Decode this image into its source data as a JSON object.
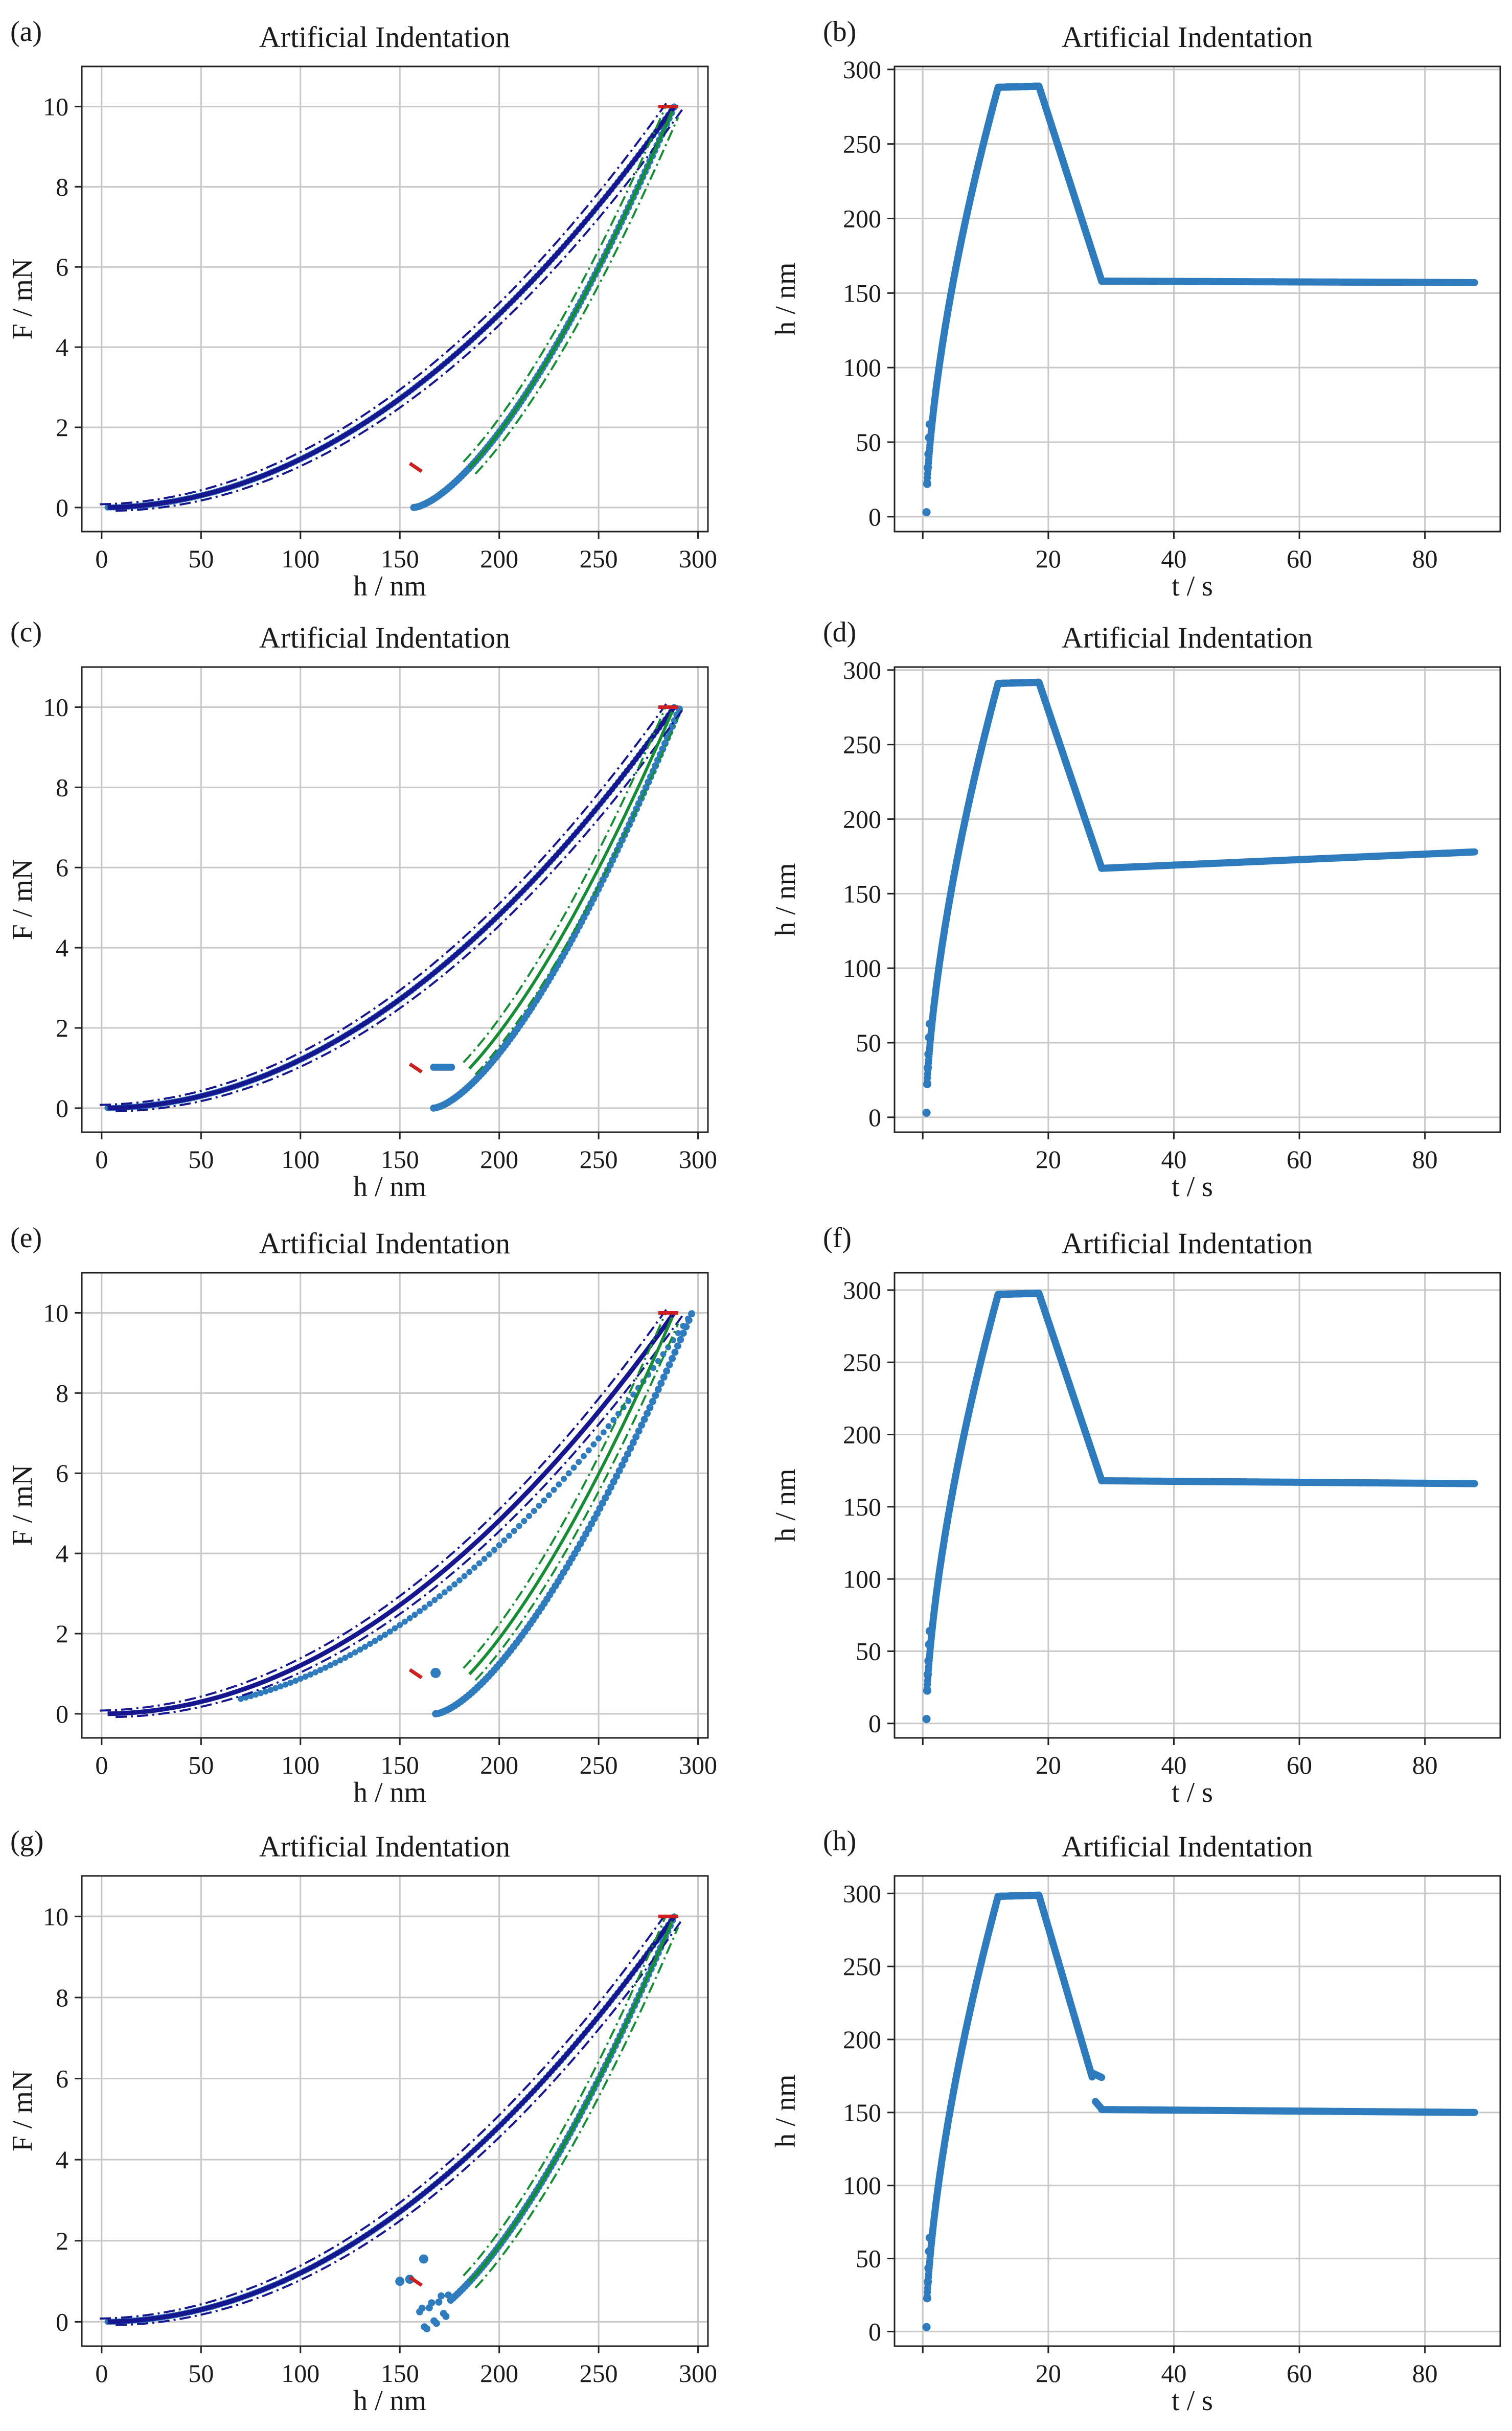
{
  "figure": {
    "kind": "2x4 grid of indentation plots"
  },
  "colors": {
    "measured": "#2e7bbd",
    "loading_fit": "#16168f",
    "unloading_fit": "#168c34",
    "max_point": "#cc2020",
    "grid": "#c8c8c8",
    "axis": "#222222"
  },
  "chart_data": [
    {
      "id": "a",
      "letter": "(a)",
      "type": "scatter",
      "title": "Artificial Indentation",
      "xlabel": "h / nm",
      "ylabel": "F / mN",
      "xlim": [
        -10,
        305
      ],
      "ylim": [
        -0.6,
        11
      ],
      "xticks": [
        0,
        50,
        100,
        150,
        200,
        250,
        300
      ],
      "yticks": [
        0,
        2,
        4,
        6,
        8,
        10
      ],
      "variant": "ideal",
      "hmax": 288,
      "hf": 157,
      "fmax": 10
    },
    {
      "id": "b",
      "letter": "(b)",
      "type": "scatter",
      "title": "Artificial Indentation",
      "xlabel": "t / s",
      "ylabel": "h / nm",
      "xlim": [
        -4.5,
        92
      ],
      "ylim": [
        -10,
        302
      ],
      "xticks": [
        0,
        20,
        40,
        60,
        80
      ],
      "xtick_labels": [
        "",
        "20",
        "40",
        "60",
        "80"
      ],
      "yticks": [
        0,
        50,
        100,
        150,
        200,
        250,
        300
      ],
      "hmax": 288,
      "h_end_unload": 158,
      "h_final": 157
    },
    {
      "id": "c",
      "letter": "(c)",
      "type": "scatter",
      "title": "Artificial Indentation",
      "xlabel": "h / nm",
      "ylabel": "F / mN",
      "xlim": [
        -10,
        305
      ],
      "ylim": [
        -0.6,
        11
      ],
      "xticks": [
        0,
        50,
        100,
        150,
        200,
        250,
        300
      ],
      "yticks": [
        0,
        2,
        4,
        6,
        8,
        10
      ],
      "variant": "creep",
      "hmax": 288,
      "hmax_measured": 291,
      "hf": 157,
      "hf_measured": 167,
      "hf_creep_end": 176,
      "fmax": 10
    },
    {
      "id": "d",
      "letter": "(d)",
      "type": "scatter",
      "title": "Artificial Indentation",
      "xlabel": "t / s",
      "ylabel": "h / nm",
      "xlim": [
        -4.5,
        92
      ],
      "ylim": [
        -10,
        302
      ],
      "xticks": [
        0,
        20,
        40,
        60,
        80
      ],
      "xtick_labels": [
        "",
        "20",
        "40",
        "60",
        "80"
      ],
      "yticks": [
        0,
        50,
        100,
        150,
        200,
        250,
        300
      ],
      "hmax": 291,
      "h_end_unload": 167,
      "h_final": 178
    },
    {
      "id": "e",
      "letter": "(e)",
      "type": "scatter",
      "title": "Artificial Indentation",
      "xlabel": "h / nm",
      "ylabel": "F / mN",
      "xlim": [
        -10,
        305
      ],
      "ylim": [
        -0.6,
        11
      ],
      "xticks": [
        0,
        50,
        100,
        150,
        200,
        250,
        300
      ],
      "yticks": [
        0,
        2,
        4,
        6,
        8,
        10
      ],
      "variant": "shift",
      "hmax": 288,
      "hmax_measured": 297,
      "hf": 157,
      "hf_measured": 168,
      "fmax": 10
    },
    {
      "id": "f",
      "letter": "(f)",
      "type": "scatter",
      "title": "Artificial Indentation",
      "xlabel": "t / s",
      "ylabel": "h / nm",
      "xlim": [
        -4.5,
        92
      ],
      "ylim": [
        -10,
        312
      ],
      "xticks": [
        0,
        20,
        40,
        60,
        80
      ],
      "xtick_labels": [
        "",
        "20",
        "40",
        "60",
        "80"
      ],
      "yticks": [
        0,
        50,
        100,
        150,
        200,
        250,
        300
      ],
      "hmax": 297,
      "h_end_unload": 168,
      "h_final": 166
    },
    {
      "id": "g",
      "letter": "(g)",
      "type": "scatter",
      "title": "Artificial Indentation",
      "xlabel": "h / nm",
      "ylabel": "F / mN",
      "xlim": [
        -10,
        305
      ],
      "ylim": [
        -0.6,
        11
      ],
      "xticks": [
        0,
        50,
        100,
        150,
        200,
        250,
        300
      ],
      "yticks": [
        0,
        2,
        4,
        6,
        8,
        10
      ],
      "variant": "noise",
      "hmax": 288,
      "hf": 157,
      "fmax": 10
    },
    {
      "id": "h",
      "letter": "(h)",
      "type": "scatter",
      "title": "Artificial Indentation",
      "xlabel": "t / s",
      "ylabel": "h / nm",
      "xlim": [
        -4.5,
        92
      ],
      "ylim": [
        -10,
        312
      ],
      "xticks": [
        0,
        20,
        40,
        60,
        80
      ],
      "xtick_labels": [
        "",
        "20",
        "40",
        "60",
        "80"
      ],
      "yticks": [
        0,
        50,
        100,
        150,
        200,
        250,
        300
      ],
      "hmax": 298,
      "h_end_unload": 152,
      "h_final": 150,
      "jump": true
    }
  ]
}
